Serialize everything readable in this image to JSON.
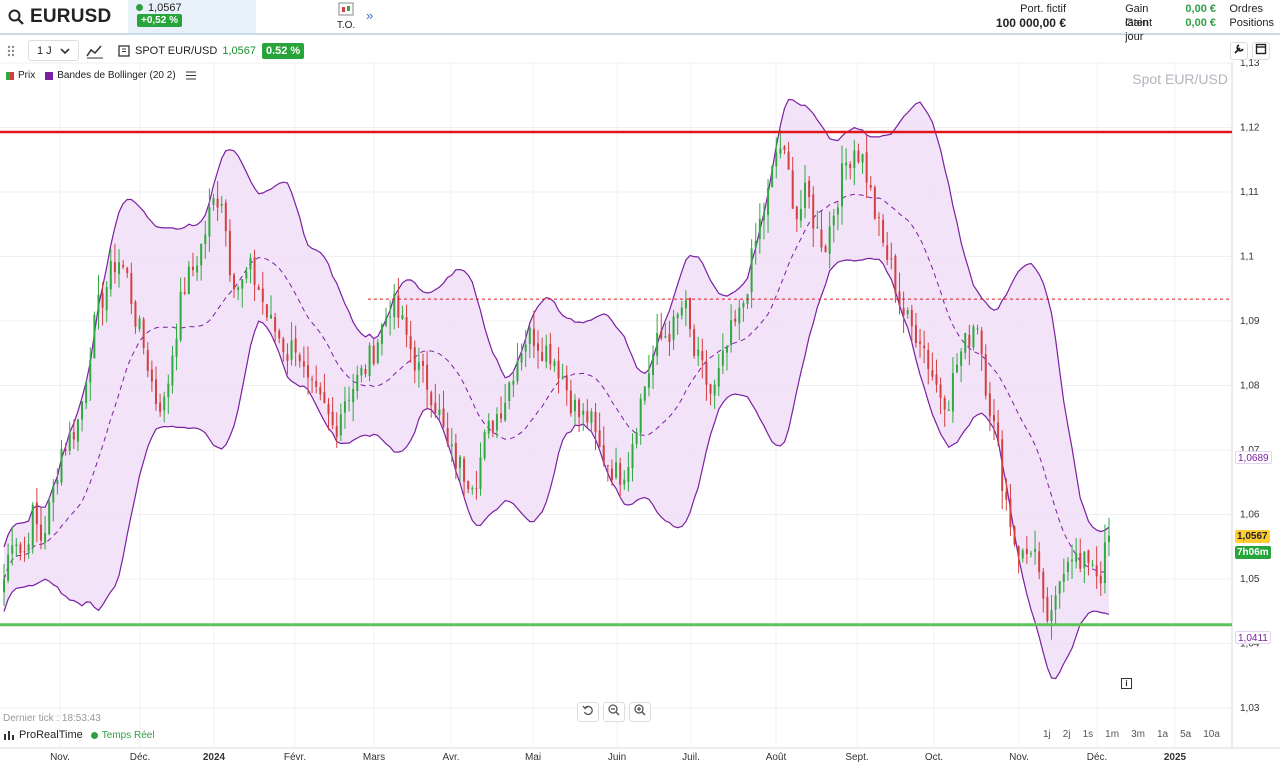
{
  "header": {
    "symbol": "EURUSD",
    "price": "1,0567",
    "change": "+0,52 %",
    "to_label": "T.O.",
    "more_label": "»",
    "portfolio_label": "Port. fictif",
    "portfolio_value": "100 000,00 €",
    "gain_latent_label": "Gain latent",
    "gain_latent_value": "0,00 €",
    "gain_jour_label": "Gain jour",
    "gain_jour_value": "0,00 €",
    "orders_label": "Ordres",
    "positions_label": "Positions"
  },
  "toolbar": {
    "timeframe": "1 J",
    "instrument_title": "SPOT EUR/USD",
    "price": "1,0567",
    "change": "0.52 %"
  },
  "legend": {
    "prix": "Prix",
    "bollinger": "Bandes de Bollinger (20 2)"
  },
  "watermark": "Spot EUR/USD",
  "last_tick": "Dernier tick : 18:53:43",
  "brand": "ProRealTime",
  "realtime": "Temps Réel",
  "periods": [
    "1j",
    "2j",
    "1s",
    "1m",
    "3m",
    "1a",
    "5a",
    "10a"
  ],
  "tags": {
    "upper": "1,0689",
    "price": "1,0567",
    "timer": "7h06m",
    "lower": "1,0411"
  },
  "colors": {
    "up": "#2eaa3f",
    "down": "#d24040",
    "band": "#7b1fa2",
    "band_fill": "#f0dcf6",
    "resistance": "#e0161d",
    "support": "#5cc45a"
  },
  "chart_data": {
    "type": "candlestick",
    "y_ticks": [
      1.03,
      1.04,
      1.05,
      1.06,
      1.07,
      1.08,
      1.09,
      1.1,
      1.11,
      1.12,
      1.13
    ],
    "y_tick_labels": [
      "1,03",
      "1,04",
      "1,05",
      "1,06",
      "1,07",
      "1,08",
      "1,09",
      "1,1",
      "1,11",
      "1,12",
      "1,13"
    ],
    "x_labels": [
      "Nov.",
      "Déc.",
      "2024",
      "Févr.",
      "Mars",
      "Avr.",
      "Mai",
      "Juin",
      "Juil.",
      "Août",
      "Sept.",
      "Oct.",
      "Nov.",
      "Déc.",
      "2025"
    ],
    "ylim": [
      1.028,
      1.1325
    ],
    "levels": {
      "resistance": 1.1193,
      "dotted": 1.0934,
      "support": 1.0429
    },
    "close_path": [
      1.05,
      1.058,
      1.053,
      1.06,
      1.056,
      1.062,
      1.07,
      1.072,
      1.075,
      1.085,
      1.092,
      1.096,
      1.1,
      1.097,
      1.09,
      1.085,
      1.078,
      1.077,
      1.087,
      1.095,
      1.098,
      1.102,
      1.108,
      1.11,
      1.098,
      1.095,
      1.098,
      1.095,
      1.09,
      1.088,
      1.085,
      1.087,
      1.08,
      1.078,
      1.076,
      1.073,
      1.078,
      1.08,
      1.082,
      1.085,
      1.089,
      1.093,
      1.09,
      1.086,
      1.082,
      1.08,
      1.076,
      1.07,
      1.068,
      1.066,
      1.066,
      1.072,
      1.075,
      1.078,
      1.083,
      1.087,
      1.088,
      1.086,
      1.085,
      1.082,
      1.078,
      1.075,
      1.075,
      1.07,
      1.068,
      1.066,
      1.068,
      1.075,
      1.081,
      1.086,
      1.088,
      1.089,
      1.093,
      1.085,
      1.082,
      1.078,
      1.083,
      1.088,
      1.091,
      1.098,
      1.105,
      1.11,
      1.118,
      1.113,
      1.106,
      1.11,
      1.104,
      1.102,
      1.108,
      1.114,
      1.117,
      1.115,
      1.108,
      1.102,
      1.098,
      1.092,
      1.089,
      1.088,
      1.083,
      1.079,
      1.078,
      1.084,
      1.087,
      1.091,
      1.08,
      1.072,
      1.063,
      1.056,
      1.053,
      1.056,
      1.045,
      1.043,
      1.052,
      1.055,
      1.051,
      1.054,
      1.05,
      1.0567
    ]
  }
}
